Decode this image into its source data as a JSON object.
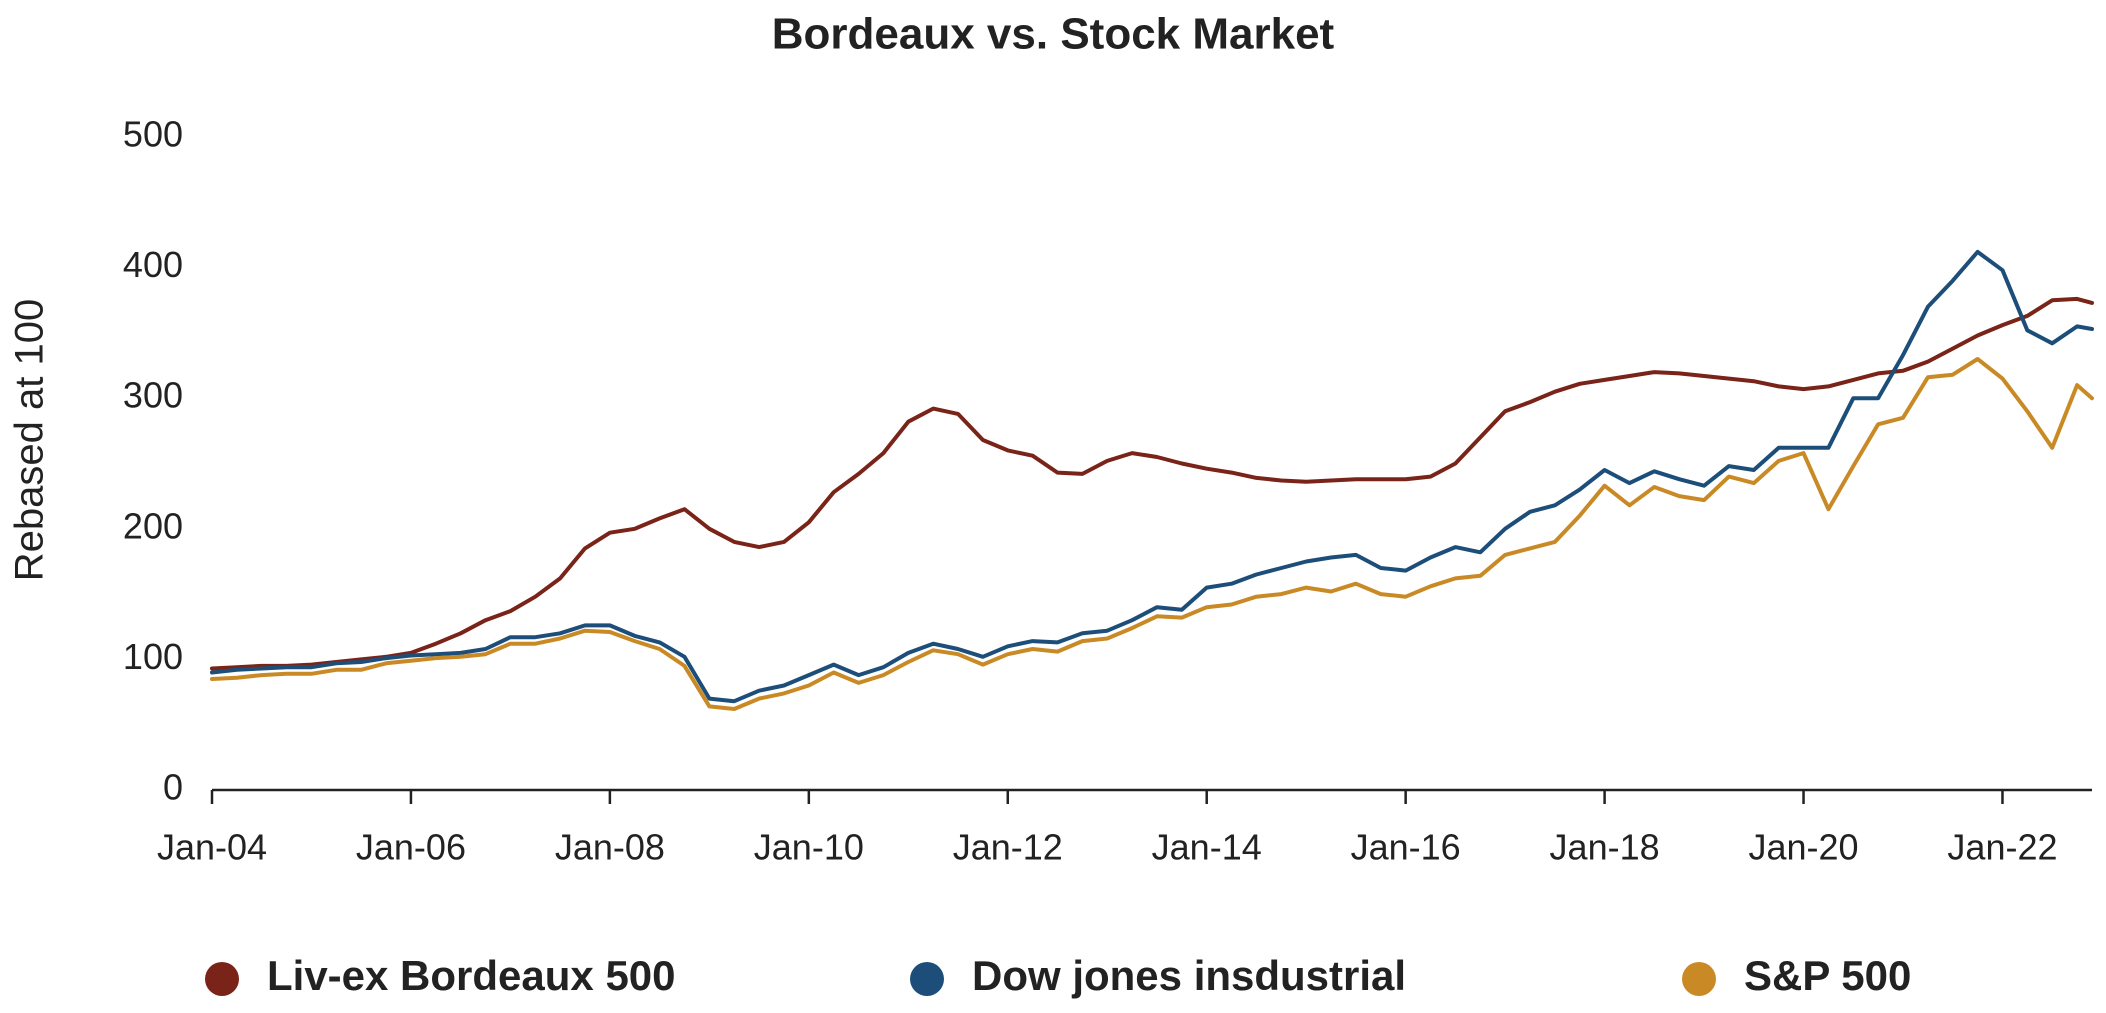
{
  "chart_data": {
    "type": "line",
    "title": "Bordeaux vs. Stock Market",
    "y_label": "Rebased at 100",
    "xlim": [
      2004,
      2022.9
    ],
    "xticks": [
      {
        "value": 2004,
        "label": "Jan-04"
      },
      {
        "value": 2006,
        "label": "Jan-06"
      },
      {
        "value": 2008,
        "label": "Jan-08"
      },
      {
        "value": 2010,
        "label": "Jan-10"
      },
      {
        "value": 2012,
        "label": "Jan-12"
      },
      {
        "value": 2014,
        "label": "Jan-14"
      },
      {
        "value": 2016,
        "label": "Jan-16"
      },
      {
        "value": 2018,
        "label": "Jan-18"
      },
      {
        "value": 2020,
        "label": "Jan-20"
      },
      {
        "value": 2022,
        "label": "Jan-22"
      }
    ],
    "ylim": [
      0,
      500
    ],
    "yticks": [
      0,
      100,
      200,
      300,
      400,
      500
    ],
    "grid": false,
    "legend": "bottom",
    "x": [
      2004,
      2004.25,
      2004.5,
      2004.75,
      2005,
      2005.25,
      2005.5,
      2005.75,
      2006,
      2006.25,
      2006.5,
      2006.75,
      2007,
      2007.25,
      2007.5,
      2007.75,
      2008,
      2008.25,
      2008.5,
      2008.75,
      2009,
      2009.25,
      2009.5,
      2009.75,
      2010,
      2010.25,
      2010.5,
      2010.75,
      2011,
      2011.25,
      2011.5,
      2011.75,
      2012,
      2012.25,
      2012.5,
      2012.75,
      2013,
      2013.25,
      2013.5,
      2013.75,
      2014,
      2014.25,
      2014.5,
      2014.75,
      2015,
      2015.25,
      2015.5,
      2015.75,
      2016,
      2016.25,
      2016.5,
      2016.75,
      2017,
      2017.25,
      2017.5,
      2017.75,
      2018,
      2018.25,
      2018.5,
      2018.75,
      2019,
      2019.25,
      2019.5,
      2019.75,
      2020,
      2020.25,
      2020.5,
      2020.75,
      2021,
      2021.25,
      2021.5,
      2021.75,
      2022,
      2022.25,
      2022.5,
      2022.75,
      2022.9
    ],
    "series": [
      {
        "name": "Liv-ex Bordeaux 500",
        "color": "#7a2318",
        "values": [
          93,
          94,
          95,
          95,
          96,
          98,
          100,
          102,
          105,
          112,
          120,
          130,
          137,
          148,
          162,
          185,
          197,
          200,
          208,
          215,
          200,
          190,
          186,
          190,
          205,
          228,
          242,
          258,
          282,
          292,
          288,
          268,
          260,
          256,
          243,
          242,
          252,
          258,
          255,
          250,
          246,
          243,
          239,
          237,
          236,
          237,
          238,
          238,
          238,
          240,
          250,
          270,
          290,
          297,
          305,
          311,
          314,
          317,
          320,
          319,
          317,
          315,
          313,
          309,
          307,
          309,
          314,
          319,
          321,
          328,
          338,
          348,
          356,
          363,
          375,
          376,
          373
        ]
      },
      {
        "name": "Dow jones insdustrial",
        "color": "#1d4e7a",
        "values": [
          90,
          92,
          93,
          94,
          94,
          97,
          98,
          101,
          103,
          104,
          105,
          108,
          117,
          117,
          120,
          126,
          126,
          118,
          113,
          102,
          70,
          68,
          76,
          80,
          88,
          96,
          88,
          94,
          105,
          112,
          108,
          102,
          110,
          114,
          113,
          120,
          122,
          130,
          140,
          138,
          155,
          158,
          165,
          170,
          175,
          178,
          180,
          170,
          168,
          178,
          186,
          182,
          200,
          213,
          218,
          230,
          245,
          235,
          244,
          238,
          233,
          248,
          245,
          262,
          262,
          262,
          300,
          300,
          333,
          370,
          390,
          412,
          398,
          352,
          342,
          355,
          353
        ]
      },
      {
        "name": "S&P 500",
        "color": "#c98a26",
        "values": [
          85,
          86,
          88,
          89,
          89,
          92,
          92,
          97,
          99,
          101,
          102,
          104,
          112,
          112,
          116,
          122,
          121,
          114,
          108,
          95,
          64,
          62,
          70,
          74,
          80,
          90,
          82,
          88,
          98,
          107,
          104,
          96,
          104,
          108,
          106,
          114,
          116,
          124,
          133,
          132,
          140,
          142,
          148,
          150,
          155,
          152,
          158,
          150,
          148,
          156,
          162,
          164,
          180,
          185,
          190,
          210,
          233,
          218,
          232,
          225,
          222,
          240,
          235,
          252,
          258,
          215,
          248,
          280,
          285,
          316,
          318,
          330,
          315,
          290,
          262,
          310,
          300
        ]
      }
    ]
  }
}
